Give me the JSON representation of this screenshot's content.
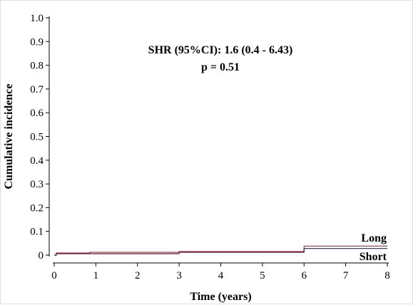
{
  "chart_data": {
    "type": "line",
    "xlabel": "Time (years)",
    "ylabel": "Cumulative incidence",
    "xlim": [
      0,
      8
    ],
    "ylim": [
      0,
      1.0
    ],
    "xticks": [
      0,
      1,
      2,
      3,
      4,
      5,
      6,
      7,
      8
    ],
    "yticks": [
      0,
      0.1,
      0.2,
      0.3,
      0.4,
      0.5,
      0.6,
      0.7,
      0.8,
      0.9,
      1.0
    ],
    "ytick_labels": [
      "0",
      "0.1",
      "0.2",
      "0.3",
      "0.4",
      "0.5",
      "0.6",
      "0.7",
      "0.8",
      "0.9",
      "1.0"
    ],
    "annotations": [
      "SHR (95%CI): 1.6 (0.4 - 6.43)",
      "p = 0.51"
    ],
    "grid": false,
    "series": [
      {
        "name": "Long",
        "color": "#c8324b",
        "step": true,
        "x": [
          0,
          0.05,
          0.85,
          3.0,
          6.0,
          8.0
        ],
        "y": [
          0.0,
          0.009,
          0.012,
          0.015,
          0.038,
          0.038
        ]
      },
      {
        "name": "Short",
        "color": "#2b2b40",
        "step": true,
        "x": [
          0,
          0.05,
          3.0,
          6.0,
          8.0
        ],
        "y": [
          0.0,
          0.006,
          0.012,
          0.028,
          0.028
        ]
      }
    ]
  }
}
